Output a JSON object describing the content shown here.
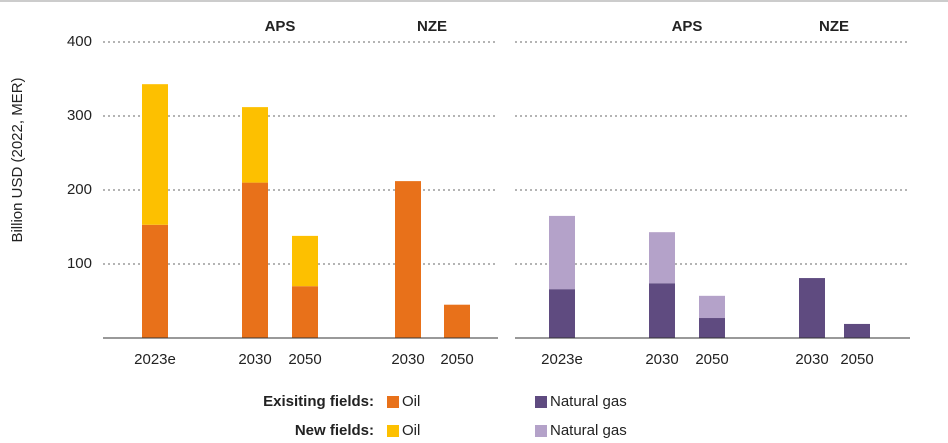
{
  "y_label": "Billion USD (2022, MER)",
  "legend_rows": [
    "Exisiting fields:",
    "New fields:"
  ],
  "chart_data": [
    {
      "type": "bar",
      "stacked": true,
      "categories": [
        "2023e",
        "2030",
        "2050",
        "2030",
        "2050"
      ],
      "groups": [
        "APS",
        "NZE"
      ],
      "ylim": [
        0,
        400
      ],
      "yticks": [
        100,
        200,
        300,
        400
      ],
      "grid": true,
      "series": [
        {
          "name": "Oil",
          "color": "#e8711a",
          "values": [
            153,
            210,
            70,
            212,
            45
          ]
        },
        {
          "name": "Oil",
          "color": "#fdc000",
          "values": [
            190,
            102,
            68,
            0,
            0
          ]
        }
      ]
    },
    {
      "type": "bar",
      "stacked": true,
      "categories": [
        "2023e",
        "2030",
        "2050",
        "2030",
        "2050"
      ],
      "groups": [
        "APS",
        "NZE"
      ],
      "ylim": [
        0,
        400
      ],
      "yticks": [
        100,
        200,
        300,
        400
      ],
      "grid": true,
      "series": [
        {
          "name": "Natural gas",
          "color": "#5f4b80",
          "values": [
            66,
            74,
            27,
            81,
            19
          ]
        },
        {
          "name": "Natural gas",
          "color": "#b4a2c9",
          "values": [
            99,
            69,
            30,
            0,
            0
          ]
        }
      ]
    }
  ]
}
